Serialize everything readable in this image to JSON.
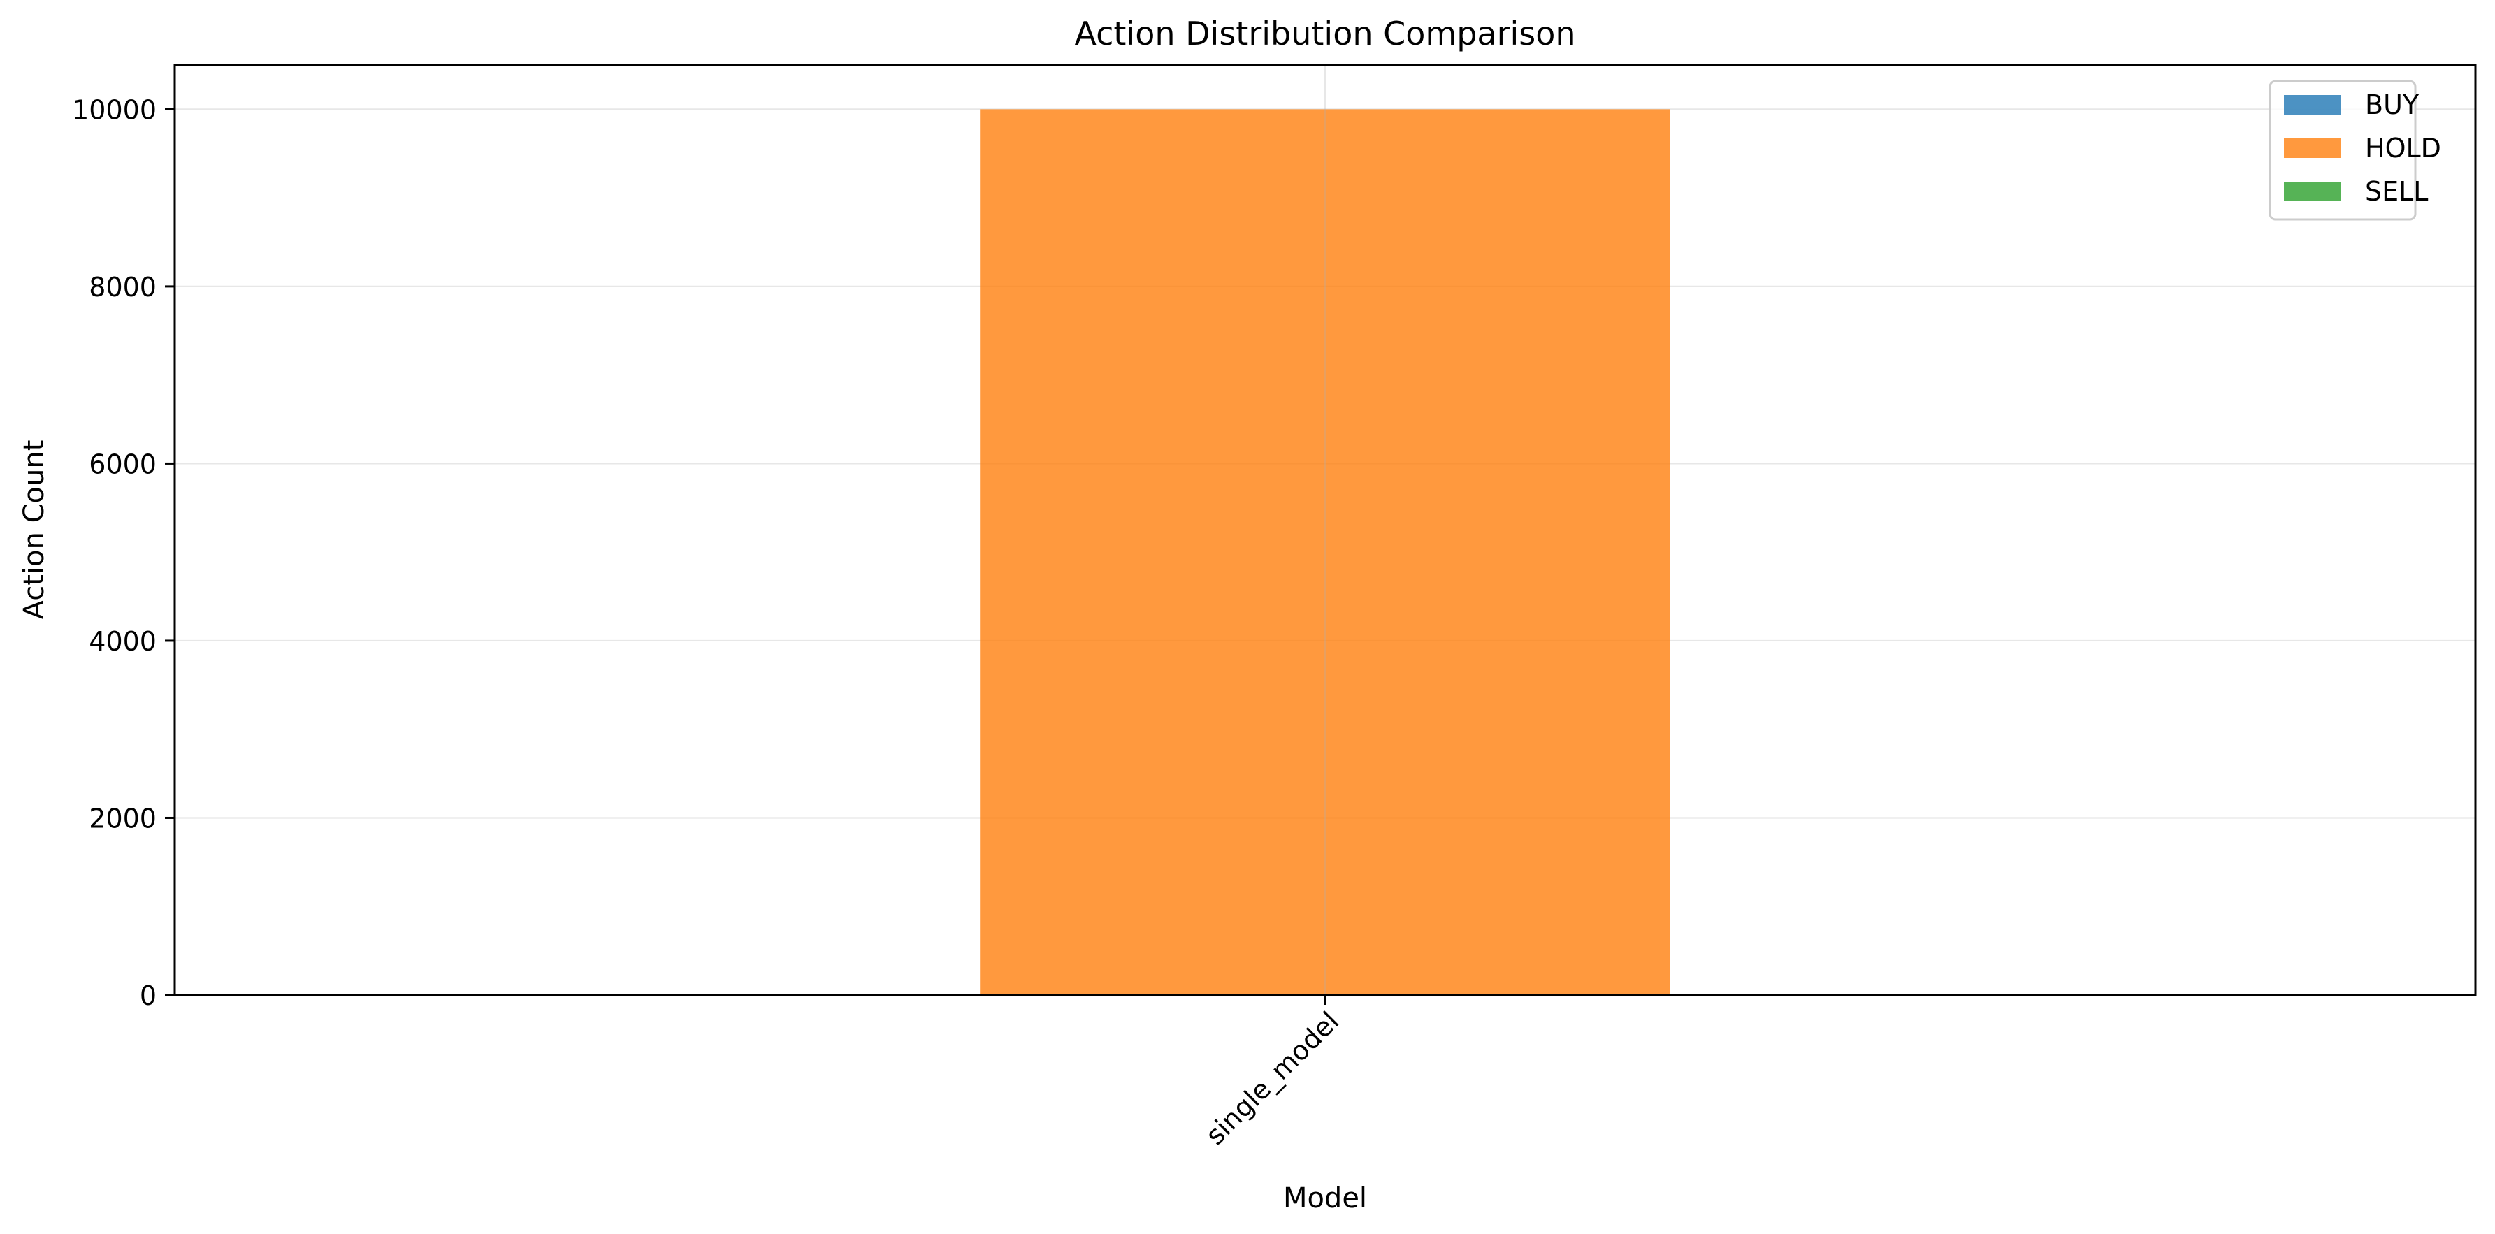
{
  "chart_data": {
    "type": "bar",
    "title": "Action Distribution Comparison",
    "xlabel": "Model",
    "ylabel": "Action Count",
    "categories": [
      "single_model"
    ],
    "series": [
      {
        "name": "BUY",
        "values": [
          0
        ],
        "color": "#1f77b4"
      },
      {
        "name": "HOLD",
        "values": [
          10000
        ],
        "color": "#ff7f0e"
      },
      {
        "name": "SELL",
        "values": [
          0
        ],
        "color": "#2ca02c"
      }
    ],
    "ylim": [
      0,
      10500
    ],
    "yticks": [
      0,
      2000,
      4000,
      6000,
      8000,
      10000
    ],
    "ytick_labels": [
      "0",
      "2000",
      "4000",
      "6000",
      "8000",
      "10000"
    ],
    "stacked": true,
    "bar_alpha": 0.8,
    "grid": true,
    "legend_position": "top-right"
  }
}
